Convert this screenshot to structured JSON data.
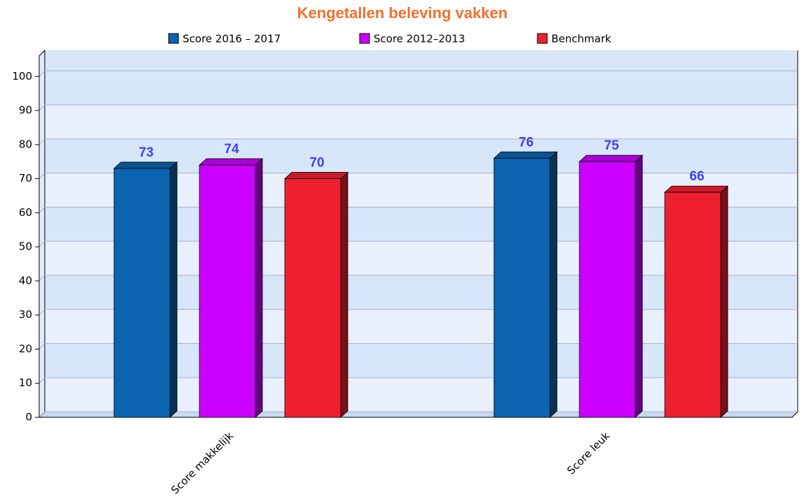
{
  "chart_data": {
    "type": "bar3d",
    "title": "Kengetallen beleving vakken",
    "categories": [
      "Score makkelijk",
      "Score leuk"
    ],
    "series": [
      {
        "name": "Score 2016 – 2017",
        "color": "#0a64b0",
        "values": [
          73,
          76
        ]
      },
      {
        "name": "Score 2012–2013",
        "color": "#cc00ff",
        "values": [
          74,
          75
        ]
      },
      {
        "name": "Benchmark",
        "color": "#ee1f2f",
        "values": [
          70,
          66
        ]
      }
    ],
    "ylim": [
      0,
      106
    ],
    "yticks": [
      0,
      10,
      20,
      30,
      40,
      50,
      60,
      70,
      80,
      90,
      100
    ],
    "grid": true
  }
}
